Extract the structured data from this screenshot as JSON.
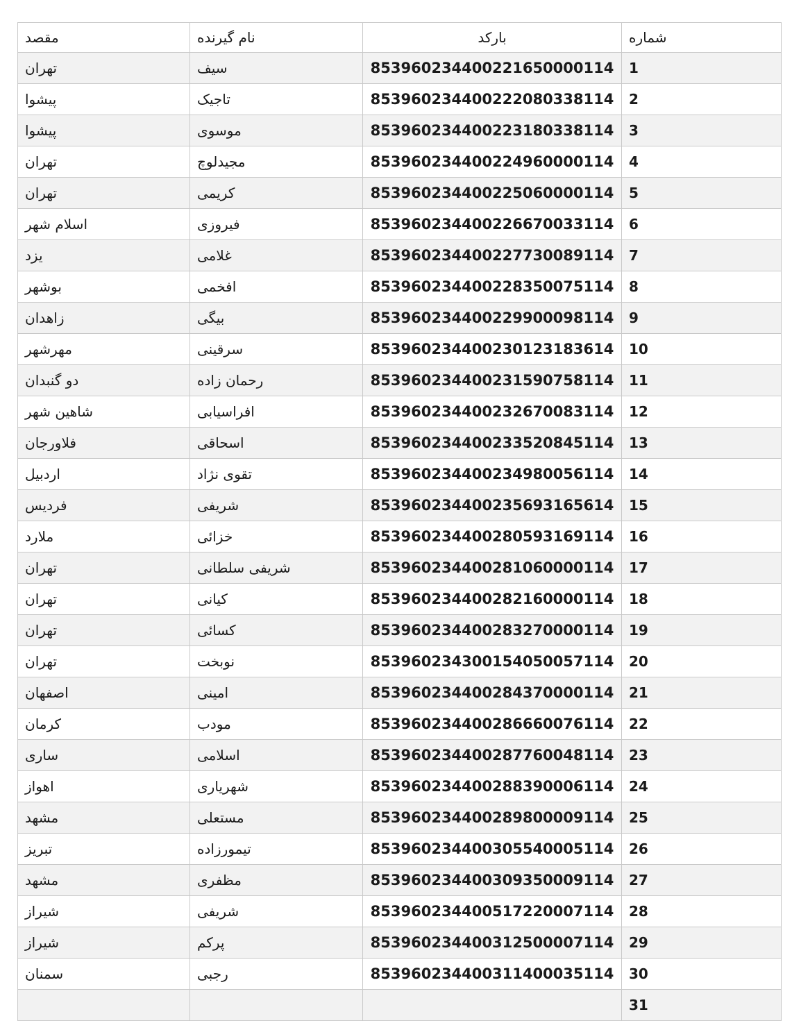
{
  "table": {
    "style": {
      "stripe_color": "#f2f2f2",
      "border_color": "#c9c9c9",
      "text_color": "#1a1a1a",
      "header_background": "#ffffff"
    },
    "columns": [
      {
        "id": "number",
        "label": "شماره"
      },
      {
        "id": "barcode",
        "label": "بارکد"
      },
      {
        "id": "recipient",
        "label": "نام گیرنده"
      },
      {
        "id": "destination",
        "label": "مقصد"
      }
    ],
    "rows": [
      {
        "number": "1",
        "barcode": "853960234400221650000114",
        "recipient": "سیف",
        "destination": "تهران"
      },
      {
        "number": "2",
        "barcode": "853960234400222080338114",
        "recipient": "تاجیک",
        "destination": "پیشوا"
      },
      {
        "number": "3",
        "barcode": "853960234400223180338114",
        "recipient": "موسوی",
        "destination": "پیشوا"
      },
      {
        "number": "4",
        "barcode": "853960234400224960000114",
        "recipient": "مجیدلوچ",
        "destination": "تهران"
      },
      {
        "number": "5",
        "barcode": "853960234400225060000114",
        "recipient": "کریمی",
        "destination": " تهران"
      },
      {
        "number": "6",
        "barcode": "853960234400226670033114",
        "recipient": "فیروزی",
        "destination": "اسلام شهر"
      },
      {
        "number": "7",
        "barcode": "853960234400227730089114",
        "recipient": "غلامی",
        "destination": "یزد"
      },
      {
        "number": "8",
        "barcode": "853960234400228350075114",
        "recipient": "افخمی",
        "destination": "بوشهر"
      },
      {
        "number": "9",
        "barcode": "853960234400229900098114",
        "recipient": "بیگی",
        "destination": "زاهدان"
      },
      {
        "number": "10",
        "barcode": "853960234400230123183614",
        "recipient": "سرقینی",
        "destination": "مهرشهر"
      },
      {
        "number": "11",
        "barcode": "853960234400231590758114",
        "recipient": "رحمان زاده",
        "destination": "دو گنبدان"
      },
      {
        "number": "12",
        "barcode": "853960234400232670083114",
        "recipient": "افراسیابی",
        "destination": "شاهین شهر"
      },
      {
        "number": "13",
        "barcode": "853960234400233520845114",
        "recipient": "اسحاقی",
        "destination": "فلاورجان"
      },
      {
        "number": "14",
        "barcode": "853960234400234980056114",
        "recipient": "تقوی نژاد",
        "destination": "اردبیل"
      },
      {
        "number": "15",
        "barcode": "853960234400235693165614",
        "recipient": " شریفی",
        "destination": "فردیس"
      },
      {
        "number": "16",
        "barcode": "853960234400280593169114",
        "recipient": "خزائی",
        "destination": "ملارد"
      },
      {
        "number": "17",
        "barcode": "853960234400281060000114",
        "recipient": "شریفی سلطانی",
        "destination": "تهران"
      },
      {
        "number": "18",
        "barcode": "853960234400282160000114",
        "recipient": "کیانی",
        "destination": "تهران"
      },
      {
        "number": "19",
        "barcode": "853960234400283270000114",
        "recipient": "کسائی",
        "destination": "تهران"
      },
      {
        "number": "20",
        "barcode": "853960234300154050057114",
        "recipient": "نوبخت",
        "destination": "تهران"
      },
      {
        "number": "21",
        "barcode": "853960234400284370000114",
        "recipient": "امینی",
        "destination": "اصفهان"
      },
      {
        "number": "22",
        "barcode": "853960234400286660076114",
        "recipient": "مودب",
        "destination": "کرمان"
      },
      {
        "number": "23",
        "barcode": "853960234400287760048114",
        "recipient": " اسلامی",
        "destination": "ساری"
      },
      {
        "number": "24",
        "barcode": "853960234400288390006114",
        "recipient": "شهریاری",
        "destination": "اهواز"
      },
      {
        "number": "25",
        "barcode": "853960234400289800009114",
        "recipient": "مستعلی",
        "destination": "مشهد"
      },
      {
        "number": "26",
        "barcode": "853960234400305540005114",
        "recipient": "تیمورزاده",
        "destination": "تبریز"
      },
      {
        "number": "27",
        "barcode": "853960234400309350009114",
        "recipient": "مظفری",
        "destination": "مشهد"
      },
      {
        "number": "28",
        "barcode": "853960234400517220007114",
        "recipient": "شریفی",
        "destination": "شیراز"
      },
      {
        "number": "29",
        "barcode": "853960234400312500007114",
        "recipient": "پرکم",
        "destination": "شیراز"
      },
      {
        "number": "30",
        "barcode": "853960234400311400035114",
        "recipient": "رجبی",
        "destination": "سمنان"
      },
      {
        "number": "31",
        "barcode": "",
        "recipient": "",
        "destination": ""
      }
    ]
  }
}
